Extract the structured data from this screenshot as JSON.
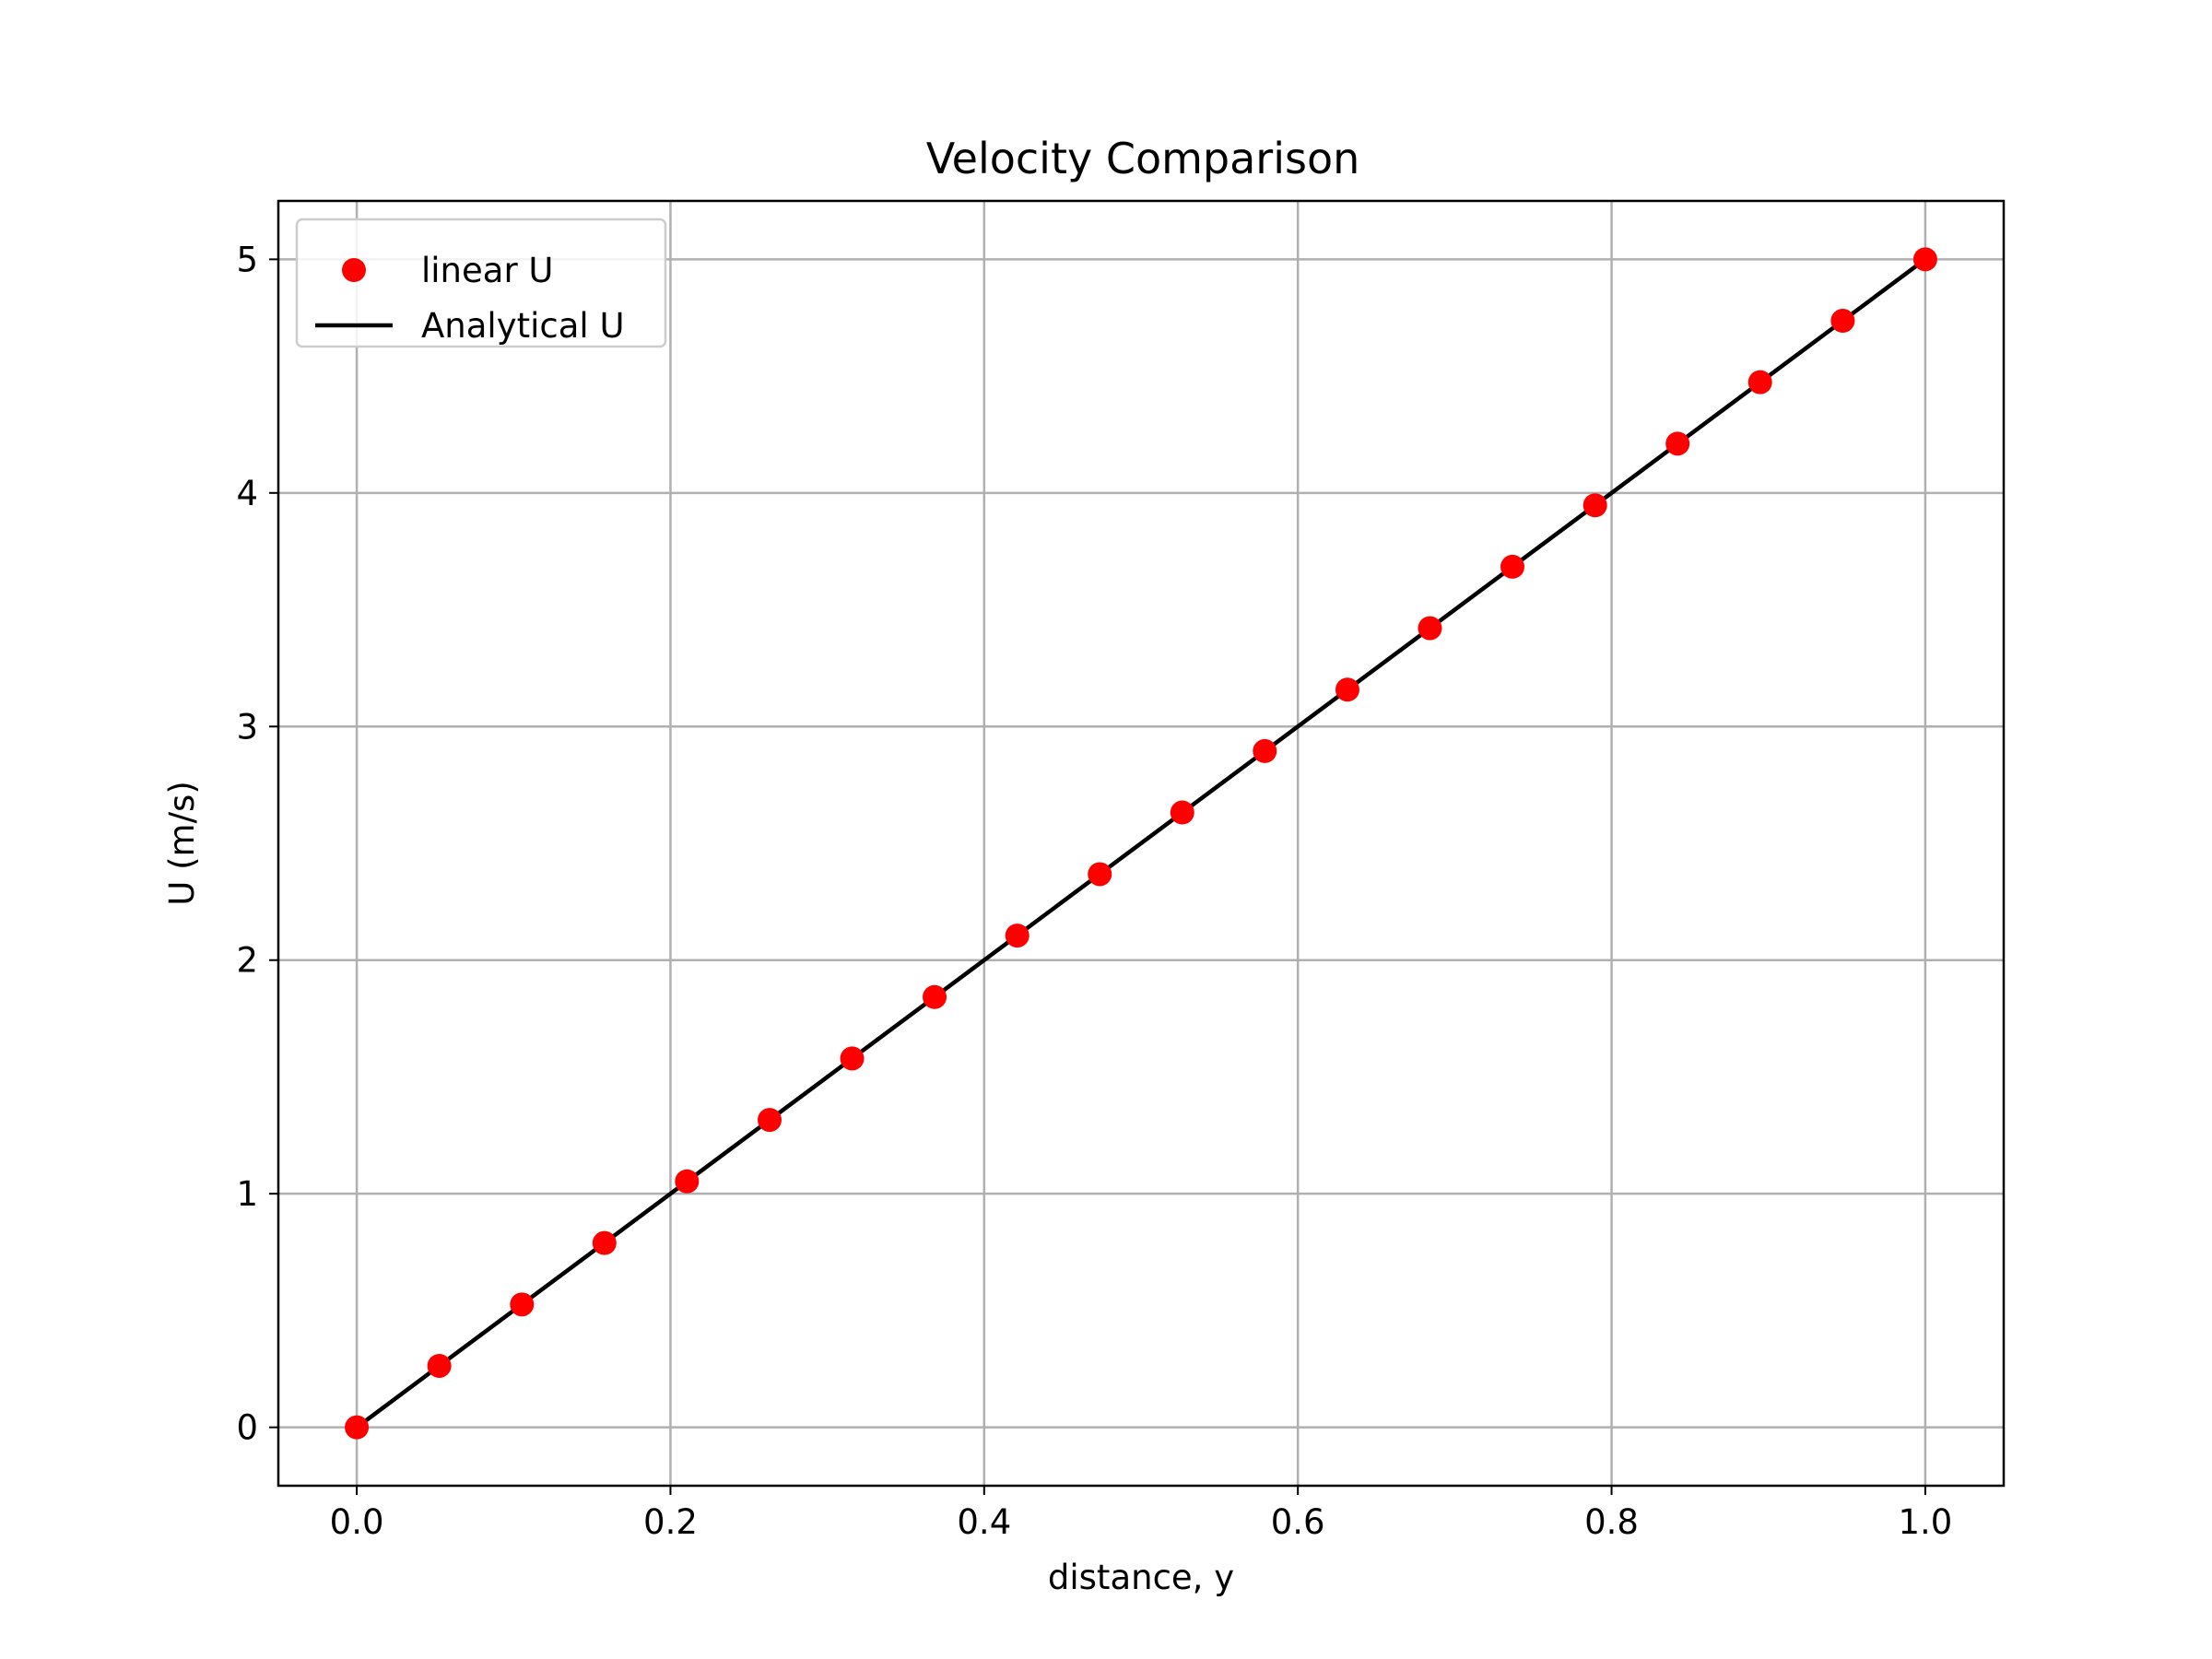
{
  "chart_data": {
    "type": "scatter",
    "title": "Velocity Comparison",
    "xlabel": "distance, y",
    "ylabel": "U (m/s)",
    "xlim": [
      -0.05,
      1.05
    ],
    "ylim": [
      -0.25,
      5.25
    ],
    "xticks": [
      0.0,
      0.2,
      0.4,
      0.6,
      0.8,
      1.0
    ],
    "xtick_labels": [
      "0.0",
      "0.2",
      "0.4",
      "0.6",
      "0.8",
      "1.0"
    ],
    "yticks": [
      0,
      1,
      2,
      3,
      4,
      5
    ],
    "ytick_labels": [
      "0",
      "1",
      "2",
      "3",
      "4",
      "5"
    ],
    "grid": true,
    "legend_position": "top-left",
    "series": [
      {
        "name": "linear U",
        "type": "scatter",
        "color": "#ff0000",
        "x": [
          0.0,
          0.0526,
          0.1053,
          0.1579,
          0.2105,
          0.2632,
          0.3158,
          0.3684,
          0.4211,
          0.4737,
          0.5263,
          0.5789,
          0.6316,
          0.6842,
          0.7368,
          0.7895,
          0.8421,
          0.8947,
          0.9474,
          1.0
        ],
        "y": [
          0.0,
          0.263,
          0.526,
          0.789,
          1.053,
          1.316,
          1.579,
          1.842,
          2.105,
          2.368,
          2.632,
          2.895,
          3.158,
          3.421,
          3.684,
          3.947,
          4.211,
          4.474,
          4.737,
          5.0
        ]
      },
      {
        "name": "Analytical U",
        "type": "line",
        "color": "#000000",
        "x": [
          0.0,
          1.0
        ],
        "y": [
          0.0,
          5.0
        ]
      }
    ]
  }
}
